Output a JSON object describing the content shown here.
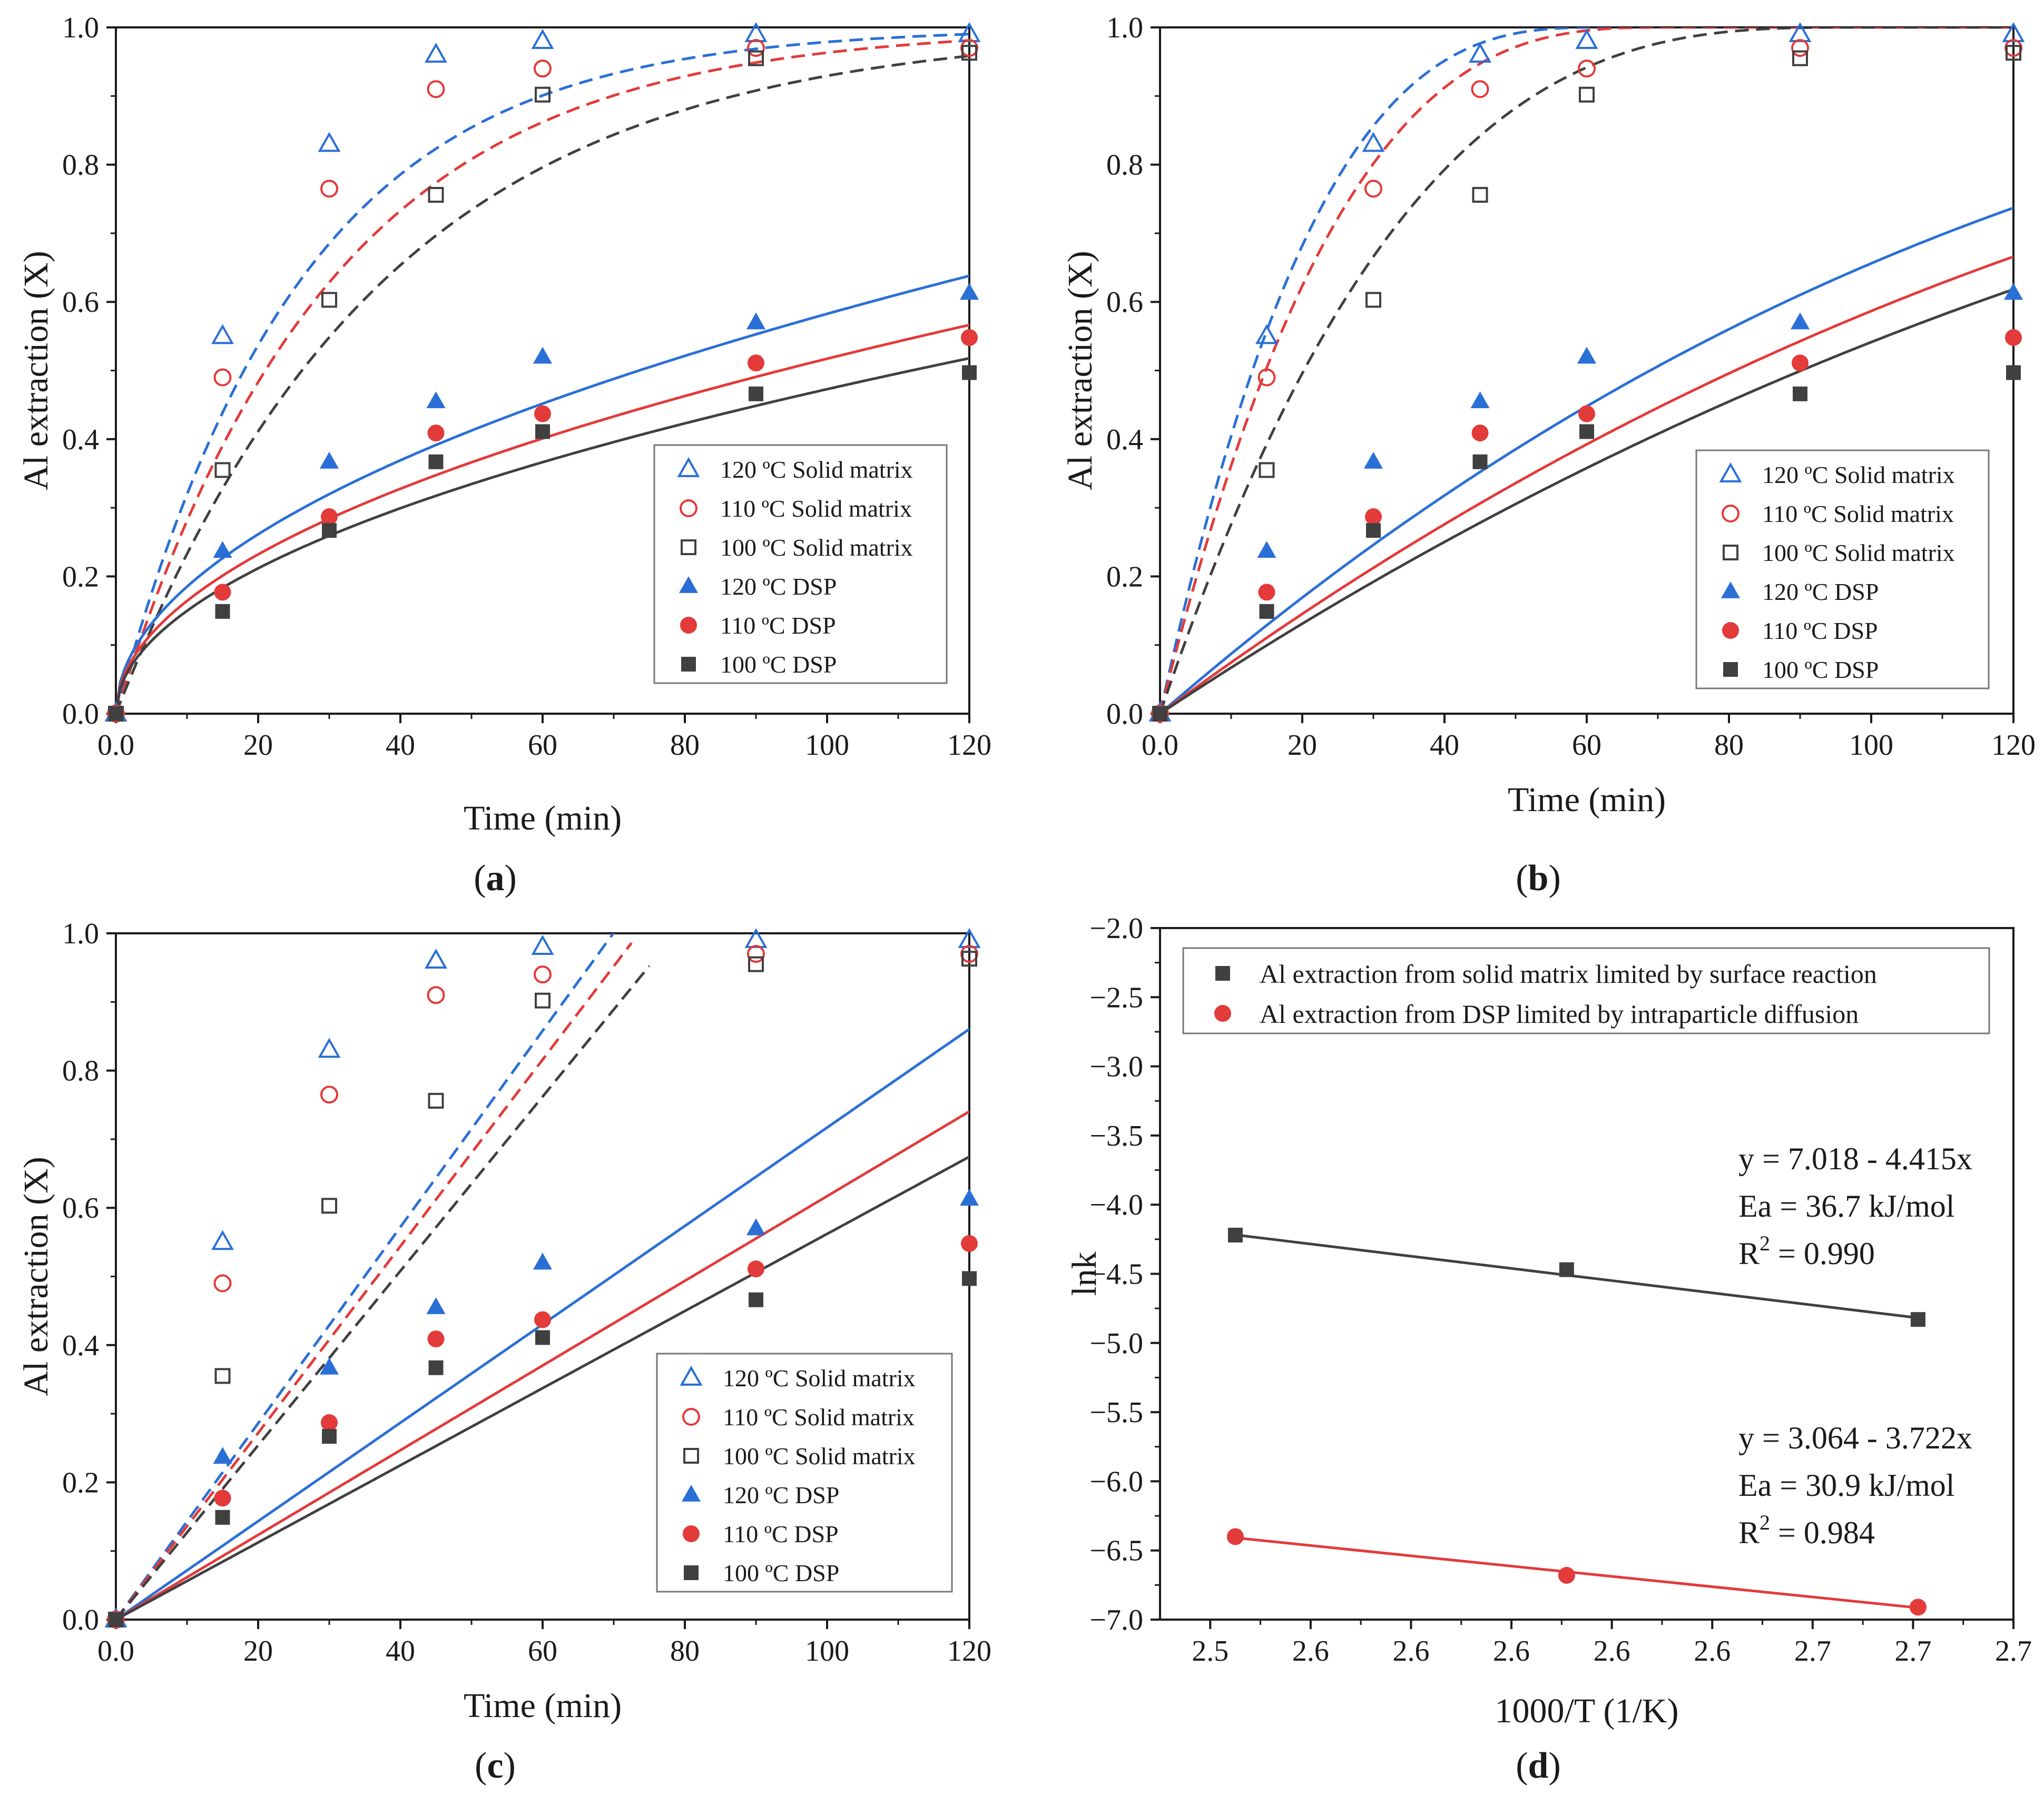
{
  "colors": {
    "blue": "#2a6fd6",
    "red": "#e33a3a",
    "gray": "#404040",
    "axis": "#1a1a1a",
    "legend_border": "#777777"
  },
  "chart_data": [
    {
      "id": "a",
      "panel_label": "a",
      "type": "scatter",
      "xlabel": "Time (min)",
      "ylabel": "Al extraction (X)",
      "xlim": [
        0,
        120
      ],
      "ylim": [
        0,
        1.0
      ],
      "xticks": [
        0,
        20,
        40,
        60,
        80,
        100,
        120
      ],
      "yticks": [
        0.0,
        0.2,
        0.4,
        0.6,
        0.8,
        1.0
      ],
      "x": [
        0,
        15,
        30,
        45,
        60,
        90,
        120
      ],
      "legend_position": "bottom-right",
      "series": [
        {
          "name": "120 ºC Solid matrix",
          "marker": "triangle-open",
          "color": "blue",
          "values": [
            0,
            0.55,
            0.83,
            0.96,
            0.98,
            0.99,
            0.99
          ]
        },
        {
          "name": "110 ºC Solid matrix",
          "marker": "circle-open",
          "color": "red",
          "values": [
            0,
            0.49,
            0.765,
            0.91,
            0.94,
            0.97,
            0.97
          ]
        },
        {
          "name": "100 ºC Solid matrix",
          "marker": "square-open",
          "color": "gray",
          "values": [
            0,
            0.355,
            0.603,
            0.756,
            0.902,
            0.955,
            0.963
          ]
        },
        {
          "name": "120 ºC DSP",
          "marker": "triangle-filled",
          "color": "blue",
          "values": [
            0,
            0.237,
            0.367,
            0.455,
            0.52,
            0.57,
            0.613
          ]
        },
        {
          "name": "110 ºC DSP",
          "marker": "circle-filled",
          "color": "red",
          "values": [
            0,
            0.177,
            0.287,
            0.409,
            0.437,
            0.511,
            0.548
          ]
        },
        {
          "name": "100 ºC DSP",
          "marker": "square-filled",
          "color": "gray",
          "values": [
            0,
            0.149,
            0.267,
            0.367,
            0.411,
            0.466,
            0.497
          ]
        }
      ],
      "fits": [
        {
          "color": "blue",
          "dash": true,
          "model": "exp",
          "k": 0.0385
        },
        {
          "color": "red",
          "dash": true,
          "model": "exp",
          "k": 0.033
        },
        {
          "color": "gray",
          "dash": true,
          "model": "exp",
          "k": 0.0265
        },
        {
          "color": "blue",
          "dash": false,
          "model": "power",
          "a": 0.0588,
          "n": 0.498
        },
        {
          "color": "red",
          "dash": false,
          "model": "power",
          "a": 0.0522,
          "n": 0.498
        },
        {
          "color": "gray",
          "dash": false,
          "model": "power",
          "a": 0.0475,
          "n": 0.499
        }
      ]
    },
    {
      "id": "b",
      "panel_label": "b",
      "type": "scatter",
      "xlabel": "Time (min)",
      "ylabel": "Al extraction (X)",
      "xlim": [
        0,
        120
      ],
      "ylim": [
        0,
        1.0
      ],
      "xticks": [
        0,
        20,
        40,
        60,
        80,
        100,
        120
      ],
      "yticks": [
        0.0,
        0.2,
        0.4,
        0.6,
        0.8,
        1.0
      ],
      "x": [
        0,
        15,
        30,
        45,
        60,
        90,
        120
      ],
      "legend_position": "bottom-right",
      "series": [
        {
          "name": "120 ºC Solid matrix",
          "marker": "triangle-open",
          "color": "blue",
          "values": [
            0,
            0.55,
            0.83,
            0.96,
            0.98,
            0.99,
            0.99
          ]
        },
        {
          "name": "110 ºC Solid matrix",
          "marker": "circle-open",
          "color": "red",
          "values": [
            0,
            0.49,
            0.765,
            0.91,
            0.94,
            0.97,
            0.97
          ]
        },
        {
          "name": "100 ºC Solid matrix",
          "marker": "square-open",
          "color": "gray",
          "values": [
            0,
            0.355,
            0.603,
            0.756,
            0.902,
            0.955,
            0.963
          ]
        },
        {
          "name": "120 ºC DSP",
          "marker": "triangle-filled",
          "color": "blue",
          "values": [
            0,
            0.237,
            0.367,
            0.455,
            0.52,
            0.57,
            0.613
          ]
        },
        {
          "name": "110 ºC DSP",
          "marker": "circle-filled",
          "color": "red",
          "values": [
            0,
            0.177,
            0.287,
            0.409,
            0.437,
            0.511,
            0.548
          ]
        },
        {
          "name": "100 ºC DSP",
          "marker": "square-filled",
          "color": "gray",
          "values": [
            0,
            0.149,
            0.267,
            0.367,
            0.411,
            0.466,
            0.497
          ]
        }
      ],
      "fits": [
        {
          "color": "blue",
          "dash": true,
          "model": "shrink",
          "tau": 63
        },
        {
          "color": "red",
          "dash": true,
          "model": "shrink",
          "tau": 72
        },
        {
          "color": "gray",
          "dash": true,
          "model": "shrink",
          "tau": 98
        },
        {
          "color": "blue",
          "dash": false,
          "model": "shrink",
          "tau": 334
        },
        {
          "color": "red",
          "dash": false,
          "model": "shrink",
          "tau": 392
        },
        {
          "color": "gray",
          "dash": false,
          "model": "shrink",
          "tau": 437
        }
      ]
    },
    {
      "id": "c",
      "panel_label": "c",
      "type": "scatter",
      "xlabel": "Time (min)",
      "ylabel": "Al extraction (X)",
      "xlim": [
        0,
        120
      ],
      "ylim": [
        0,
        1.0
      ],
      "xticks": [
        0,
        20,
        40,
        60,
        80,
        100,
        120
      ],
      "yticks": [
        0.0,
        0.2,
        0.4,
        0.6,
        0.8,
        1.0
      ],
      "x": [
        0,
        15,
        30,
        45,
        60,
        90,
        120
      ],
      "legend_position": "bottom-right",
      "series": [
        {
          "name": "120 ºC Solid matrix",
          "marker": "triangle-open",
          "color": "blue",
          "values": [
            0,
            0.55,
            0.83,
            0.96,
            0.98,
            0.99,
            0.99
          ]
        },
        {
          "name": "110 ºC Solid matrix",
          "marker": "circle-open",
          "color": "red",
          "values": [
            0,
            0.49,
            0.765,
            0.91,
            0.94,
            0.97,
            0.97
          ]
        },
        {
          "name": "100 ºC Solid matrix",
          "marker": "square-open",
          "color": "gray",
          "values": [
            0,
            0.355,
            0.603,
            0.756,
            0.902,
            0.955,
            0.963
          ]
        },
        {
          "name": "120 ºC DSP",
          "marker": "triangle-filled",
          "color": "blue",
          "values": [
            0,
            0.237,
            0.367,
            0.455,
            0.52,
            0.57,
            0.613
          ]
        },
        {
          "name": "110 ºC DSP",
          "marker": "circle-filled",
          "color": "red",
          "values": [
            0,
            0.177,
            0.287,
            0.409,
            0.437,
            0.511,
            0.548
          ]
        },
        {
          "name": "100 ºC DSP",
          "marker": "square-filled",
          "color": "gray",
          "values": [
            0,
            0.149,
            0.267,
            0.367,
            0.411,
            0.466,
            0.497
          ]
        }
      ],
      "fits": [
        {
          "color": "blue",
          "dash": true,
          "model": "linear",
          "slope": 0.0143,
          "x_end": 70
        },
        {
          "color": "red",
          "dash": true,
          "model": "linear",
          "slope": 0.0136,
          "x_end": 72.5
        },
        {
          "color": "gray",
          "dash": true,
          "model": "linear",
          "slope": 0.0127,
          "x_end": 75
        },
        {
          "color": "blue",
          "dash": false,
          "model": "linear",
          "slope": 0.00717,
          "x_end": 120
        },
        {
          "color": "red",
          "dash": false,
          "model": "linear",
          "slope": 0.00617,
          "x_end": 120
        },
        {
          "color": "gray",
          "dash": false,
          "model": "linear",
          "slope": 0.00562,
          "x_end": 120
        }
      ]
    },
    {
      "id": "d",
      "panel_label": "d",
      "type": "scatter",
      "xlabel": "1000/T (1/K)",
      "ylabel": "lnk",
      "xlim": [
        2.53,
        2.7
      ],
      "ylim": [
        -7.0,
        -2.0
      ],
      "xticks": [
        2.54,
        2.56,
        2.58,
        2.6,
        2.62,
        2.64,
        2.66,
        2.68,
        2.7
      ],
      "yticks": [
        -2.0,
        -2.5,
        -3.0,
        -3.5,
        -4.0,
        -4.5,
        -5.0,
        -5.5,
        -6.0,
        -6.5,
        -7.0
      ],
      "legend_position": "top-left",
      "series": [
        {
          "name": "Al extraction from solid matrix limited by surface reaction",
          "marker": "square-filled",
          "color": "gray",
          "x": [
            2.545,
            2.611,
            2.681
          ],
          "values": [
            -4.22,
            -4.47,
            -4.83
          ],
          "fit": {
            "intercept": 7.018,
            "slope": -4.415
          }
        },
        {
          "name": "Al extraction from DSP limited by intraparticle diffusion",
          "marker": "circle-filled",
          "color": "red",
          "x": [
            2.545,
            2.611,
            2.681
          ],
          "values": [
            -6.4,
            -6.68,
            -6.91
          ],
          "fit": {
            "intercept": 3.064,
            "slope": -3.722
          }
        }
      ],
      "annotations": [
        {
          "eq": "y = 7.018 - 4.415x",
          "ea": "Ea = 36.7 kJ/mol",
          "r2_prefix": "R",
          "r2_sup": "2",
          "r2_value": " = 0.990"
        },
        {
          "eq": "y = 3.064 - 3.722x",
          "ea": "Ea = 30.9 kJ/mol",
          "r2_prefix": "R",
          "r2_sup": "2",
          "r2_value": " = 0.984"
        }
      ]
    }
  ]
}
